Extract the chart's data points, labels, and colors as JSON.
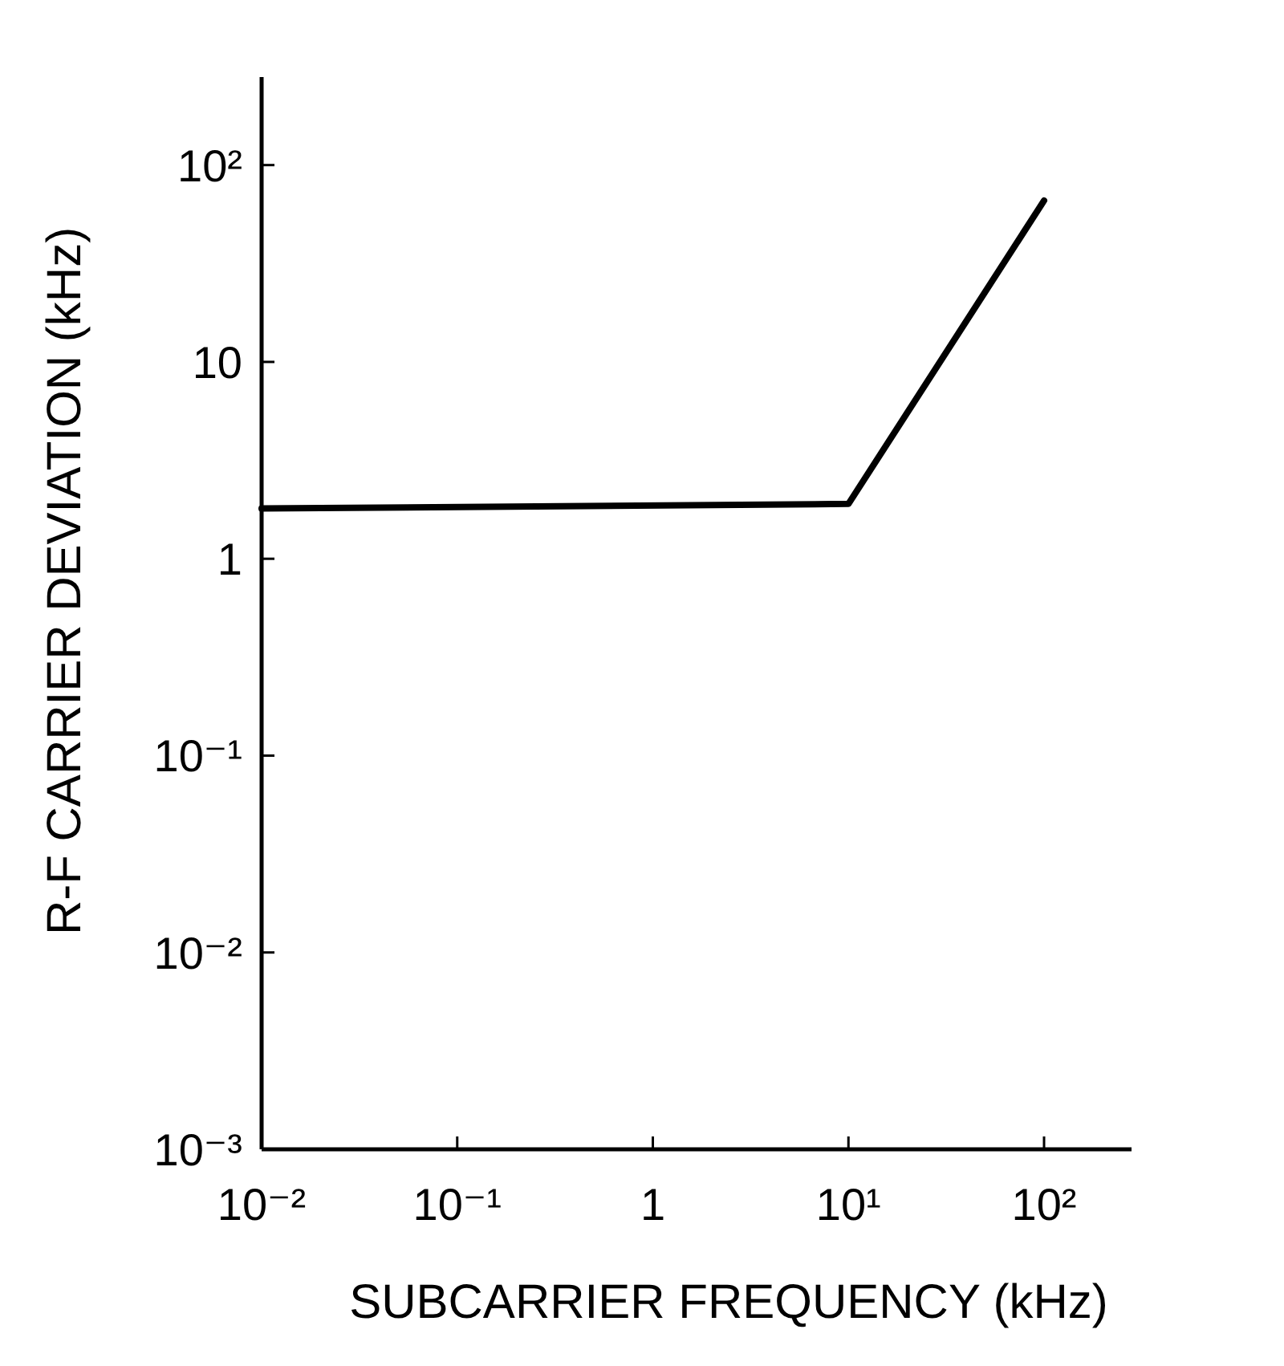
{
  "chart_data": {
    "type": "line",
    "xlabel": "SUBCARRIER FREQUENCY (kHz)",
    "ylabel": "R-F CARRIER DEVIATION (kHz)",
    "log": "xy",
    "grid": false,
    "marker": "none",
    "line_style": "solid",
    "x": [
      0.01,
      10,
      100
    ],
    "series": [
      {
        "color": "#000000",
        "values": [
          1.8,
          1.9,
          66
        ]
      }
    ],
    "xlim": [
      0.01,
      280
    ],
    "ylim": [
      0.001,
      280
    ],
    "xticks": [
      {
        "value": 0.01,
        "label": "10⁻²"
      },
      {
        "value": 0.1,
        "label": "10⁻¹"
      },
      1,
      {
        "value": 10,
        "label": "10¹"
      },
      {
        "value": 100,
        "label": "10²"
      }
    ],
    "yticks": [
      {
        "value": 0.001,
        "label": "10⁻³"
      },
      {
        "value": 0.01,
        "label": "10⁻²"
      },
      {
        "value": 0.1,
        "label": "10⁻¹"
      },
      1,
      10,
      {
        "value": 100,
        "label": "10²"
      }
    ]
  }
}
